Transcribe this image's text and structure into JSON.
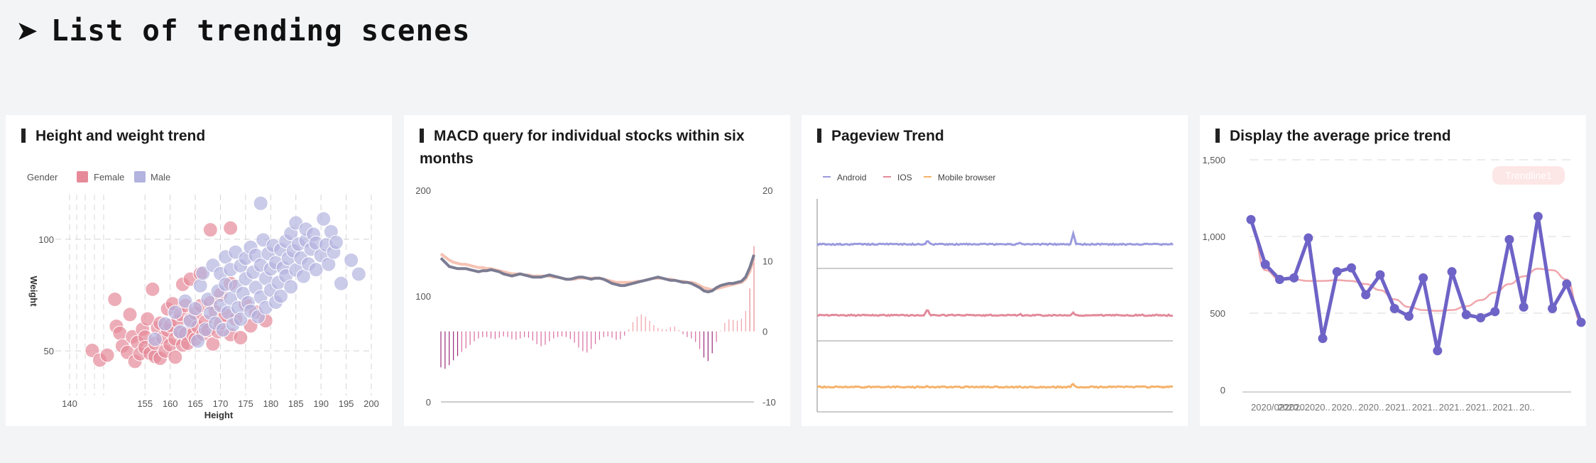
{
  "page": {
    "title": "List of trending scenes"
  },
  "cards": [
    {
      "title": "Height and weight trend"
    },
    {
      "title": "MACD query for individual stocks within six months"
    },
    {
      "title": "Pageview Trend"
    },
    {
      "title": "Display the average price trend"
    }
  ],
  "colors": {
    "female": "#e68a9a",
    "male": "#b3b3e0",
    "kline": "#7b7c92",
    "signal": "#f6c2b3",
    "android": "#9a9adf",
    "ios": "#e38a9c",
    "mobile": "#f5b26b",
    "price": "#6e63c6",
    "trend": "#f0a6ac"
  },
  "chart_data": [
    {
      "type": "scatter",
      "title": "Height and weight trend",
      "legend_title": "Gender",
      "legend_position": "top-left",
      "xlabel": "Height",
      "ylabel": "Weight",
      "xticks": [
        "140",
        "155",
        "160",
        "165",
        "170",
        "175",
        "180",
        "185",
        "190",
        "195",
        "200"
      ],
      "yticks": [
        "50",
        "100"
      ],
      "xlim": [
        140,
        200
      ],
      "ylim": [
        30,
        120
      ],
      "series": [
        {
          "name": "Female",
          "points": [
            [
              144.5,
              50.2
            ],
            [
              146,
              45.9
            ],
            [
              147.5,
              48.1
            ],
            [
              149,
              73.1
            ],
            [
              149.3,
              61
            ],
            [
              150,
              57.9
            ],
            [
              150.5,
              52.2
            ],
            [
              151.5,
              49.3
            ],
            [
              152,
              66.3
            ],
            [
              152.5,
              56.3
            ],
            [
              153,
              45.3
            ],
            [
              153.5,
              53.8
            ],
            [
              154,
              48.7
            ],
            [
              154.5,
              59.7
            ],
            [
              155,
              56.2
            ],
            [
              155,
              51.5
            ],
            [
              155.5,
              64.3
            ],
            [
              156,
              48.9
            ],
            [
              156.5,
              77.6
            ],
            [
              157,
              47.5
            ],
            [
              157,
              53.4
            ],
            [
              157.5,
              60.3
            ],
            [
              158,
              62.4
            ],
            [
              158,
              46.7
            ],
            [
              158.5,
              55.8
            ],
            [
              159,
              49.9
            ],
            [
              159.5,
              59.3
            ],
            [
              159.5,
              68.8
            ],
            [
              160,
              52.7
            ],
            [
              160,
              61.4
            ],
            [
              160.5,
              71.1
            ],
            [
              161,
              47.2
            ],
            [
              161,
              55.4
            ],
            [
              161.5,
              63.3
            ],
            [
              162,
              66.4
            ],
            [
              162,
              58.1
            ],
            [
              162.5,
              52.6
            ],
            [
              162.5,
              79.8
            ],
            [
              163,
              57.7
            ],
            [
              163,
              70.3
            ],
            [
              163.5,
              53.4
            ],
            [
              164,
              64.1
            ],
            [
              164,
              82.1
            ],
            [
              164.5,
              57.4
            ],
            [
              165,
              55.3
            ],
            [
              165,
              66.8
            ],
            [
              165.5,
              60.8
            ],
            [
              166,
              70.2
            ],
            [
              166,
              84.6
            ],
            [
              166.5,
              57.5
            ],
            [
              167,
              63.1
            ],
            [
              167.5,
              59.2
            ],
            [
              168,
              71.5
            ],
            [
              168,
              104.2
            ],
            [
              168.5,
              53.1
            ],
            [
              169,
              67.4
            ],
            [
              169.5,
              58.6
            ],
            [
              170,
              75.2
            ],
            [
              170,
              62.4
            ],
            [
              171,
              66
            ],
            [
              172,
              57.3
            ],
            [
              172,
              80.2
            ],
            [
              173,
              64.3
            ],
            [
              174,
              55.9
            ],
            [
              175,
              70.8
            ],
            [
              176,
              61.2
            ],
            [
              177,
              67.4
            ],
            [
              179,
              63.5
            ],
            [
              172,
              105
            ]
          ]
        },
        {
          "name": "Male",
          "points": [
            [
              157,
              55.2
            ],
            [
              159,
              62.1
            ],
            [
              161,
              67.3
            ],
            [
              162,
              58.6
            ],
            [
              163,
              72.3
            ],
            [
              164,
              63.4
            ],
            [
              165,
              68.9
            ],
            [
              165.5,
              54.4
            ],
            [
              166,
              79.2
            ],
            [
              166.5,
              84.8
            ],
            [
              167,
              59.6
            ],
            [
              167.5,
              73.1
            ],
            [
              168,
              66.9
            ],
            [
              168.5,
              88.3
            ],
            [
              169,
              62.4
            ],
            [
              169.5,
              76.8
            ],
            [
              170,
              70.3
            ],
            [
              170,
              84.6
            ],
            [
              170.5,
              59.4
            ],
            [
              171,
              92.1
            ],
            [
              171,
              79.8
            ],
            [
              171.5,
              67.2
            ],
            [
              172,
              86.4
            ],
            [
              172,
              73.5
            ],
            [
              172.5,
              61.8
            ],
            [
              173,
              94.2
            ],
            [
              173,
              78.9
            ],
            [
              173.5,
              69.3
            ],
            [
              174,
              88.1
            ],
            [
              174,
              64.2
            ],
            [
              174.5,
              75.7
            ],
            [
              175,
              91.5
            ],
            [
              175,
              82.3
            ],
            [
              175.5,
              71.6
            ],
            [
              176,
              96.4
            ],
            [
              176,
              67.8
            ],
            [
              176.5,
              85.2
            ],
            [
              177,
              78.4
            ],
            [
              177,
              92.8
            ],
            [
              177.5,
              65.3
            ],
            [
              178,
              88.4
            ],
            [
              178,
              74.1
            ],
            [
              178,
              116.1
            ],
            [
              178.5,
              99.7
            ],
            [
              179,
              82.5
            ],
            [
              179,
              69.4
            ],
            [
              179.5,
              93.6
            ],
            [
              180,
              86.7
            ],
            [
              180,
              77.2
            ],
            [
              180.5,
              97.2
            ],
            [
              181,
              71.8
            ],
            [
              181,
              89.5
            ],
            [
              181.5,
              80.6
            ],
            [
              182,
              95.3
            ],
            [
              182,
              74.5
            ],
            [
              182.5,
              87.2
            ],
            [
              183,
              99.1
            ],
            [
              183,
              83.6
            ],
            [
              183.5,
              91.4
            ],
            [
              184,
              78.7
            ],
            [
              184,
              102.6
            ],
            [
              184.5,
              94.8
            ],
            [
              185,
              86.2
            ],
            [
              185,
              107.3
            ],
            [
              185.5,
              97.8
            ],
            [
              186,
              91.6
            ],
            [
              186.5,
              83.4
            ],
            [
              187,
              99.4
            ],
            [
              187,
              104.5
            ],
            [
              187.5,
              88.9
            ],
            [
              188,
              95.6
            ],
            [
              188.5,
              102.2
            ],
            [
              189,
              86.4
            ],
            [
              189,
              98.3
            ],
            [
              190,
              92.7
            ],
            [
              190.5,
              109.1
            ],
            [
              191,
              97.5
            ],
            [
              191.5,
              88.8
            ],
            [
              192,
              103.4
            ],
            [
              192.5,
              94.2
            ],
            [
              193,
              98.6
            ],
            [
              194,
              80.2
            ],
            [
              196,
              90.6
            ],
            [
              197.5,
              84.4
            ]
          ]
        }
      ]
    },
    {
      "type": "line",
      "title": "MACD query for individual stocks within six months",
      "yticks_left": [
        "0",
        "100",
        "200"
      ],
      "yticks_right": [
        "-10",
        "0",
        "10",
        "20"
      ],
      "ylim_left": [
        0,
        200
      ],
      "ylim_right": [
        -10,
        20
      ],
      "kline": [
        136,
        132,
        128,
        127,
        126,
        126,
        126,
        125,
        124,
        123,
        124,
        124,
        125,
        124,
        123,
        121,
        120,
        119,
        120,
        121,
        120,
        119,
        118,
        118,
        118,
        119,
        120,
        119,
        118,
        117,
        116,
        116,
        117,
        118,
        118,
        117,
        116,
        117,
        117,
        116,
        114,
        112,
        111,
        110,
        110,
        111,
        112,
        113,
        114,
        115,
        116,
        117,
        118,
        117,
        116,
        115,
        115,
        114,
        113,
        113,
        112,
        110,
        108,
        105,
        104,
        105,
        108,
        110,
        111,
        112,
        112,
        113,
        114,
        118,
        127,
        139
      ],
      "signal": [
        140,
        137,
        134,
        132,
        131,
        130,
        130,
        129,
        128,
        127,
        127,
        126,
        126,
        125,
        124,
        123,
        122,
        121,
        121,
        121,
        120,
        120,
        119,
        119,
        119,
        119,
        119,
        118,
        118,
        117,
        116,
        116,
        116,
        117,
        117,
        117,
        117,
        117,
        117,
        116,
        115,
        114,
        113,
        113,
        113,
        113,
        113,
        114,
        114,
        115,
        116,
        117,
        117,
        117,
        116,
        116,
        115,
        114,
        114,
        113,
        113,
        112,
        110,
        108,
        107,
        106,
        107,
        108,
        109,
        110,
        111,
        112,
        113,
        116,
        123,
        136
      ],
      "macd": [
        -5.1,
        -5.3,
        -4.8,
        -4.1,
        -3.5,
        -2.9,
        -2.4,
        -1.9,
        -1.4,
        -1.0,
        -0.8,
        -0.8,
        -1.0,
        -1.1,
        -0.9,
        -0.7,
        -0.8,
        -1.1,
        -1.2,
        -1.0,
        -0.8,
        -0.9,
        -1.3,
        -1.8,
        -2.1,
        -1.9,
        -1.4,
        -1.0,
        -0.8,
        -0.7,
        -0.8,
        -1.1,
        -1.6,
        -2.3,
        -2.8,
        -3.0,
        -2.5,
        -1.8,
        -1.2,
        -0.8,
        -0.7,
        -0.9,
        -1.2,
        -1.1,
        -0.6,
        0.3,
        1.3,
        2.1,
        2.4,
        2.1,
        1.5,
        0.9,
        0.5,
        0.3,
        0.3,
        0.6,
        0.7,
        0.2,
        -0.4,
        -0.8,
        -1.0,
        -1.5,
        -2.5,
        -3.7,
        -4.2,
        -3.1,
        -1.5,
        0.1,
        1.2,
        1.7,
        1.6,
        1.5,
        1.8,
        2.9,
        6.1,
        12.1
      ]
    },
    {
      "type": "line",
      "title": "Pageview Trend",
      "legend_position": "top-left",
      "series": [
        {
          "name": "Android",
          "spikes": [
            [
              0.31,
              1.2
            ],
            [
              0.57,
              0.8
            ],
            [
              0.72,
              3.8
            ]
          ]
        },
        {
          "name": "IOS",
          "spikes": [
            [
              0.31,
              2.3
            ],
            [
              0.57,
              0.4
            ],
            [
              0.72,
              1.0
            ]
          ]
        },
        {
          "name": "Mobile browser",
          "spikes": [
            [
              0.31,
              0.3
            ],
            [
              0.72,
              1.2
            ]
          ]
        }
      ]
    },
    {
      "type": "line",
      "title": "Display the average price trend",
      "badge": "Trendline1",
      "yticks": [
        "0",
        "500",
        "1,000",
        "1,500"
      ],
      "ylim": [
        0,
        1500
      ],
      "xticks": [
        "2020/022020..",
        "2020..",
        "2020..",
        "2020..",
        "2020..",
        "2021..",
        "2021..",
        "2021..",
        "2021..",
        "2021..",
        "20.."
      ],
      "values": [
        1110,
        818,
        720,
        730,
        990,
        335,
        770,
        795,
        620,
        750,
        530,
        480,
        730,
        255,
        770,
        490,
        470,
        510,
        980,
        540,
        1130,
        530,
        690,
        440
      ],
      "trend": [
        1090,
        780,
        720,
        720,
        710,
        710,
        715,
        710,
        690,
        650,
        590,
        540,
        520,
        515,
        520,
        545,
        585,
        635,
        690,
        740,
        790,
        780,
        720,
        440
      ]
    }
  ]
}
